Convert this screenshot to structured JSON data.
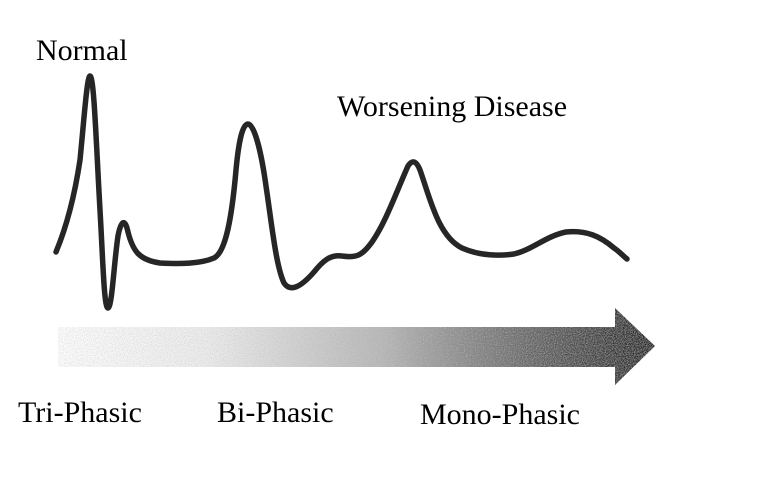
{
  "labels": {
    "normal": "Normal",
    "worsening": "Worsening Disease",
    "tri_phasic": "Tri-Phasic",
    "bi_phasic": "Bi-Phasic",
    "mono_phasic": "Mono-Phasic"
  },
  "colors": {
    "waveform": "#262626",
    "arrow_dark": "#1a1a1a",
    "arrow_light": "#ffffff",
    "text": "#000000"
  }
}
